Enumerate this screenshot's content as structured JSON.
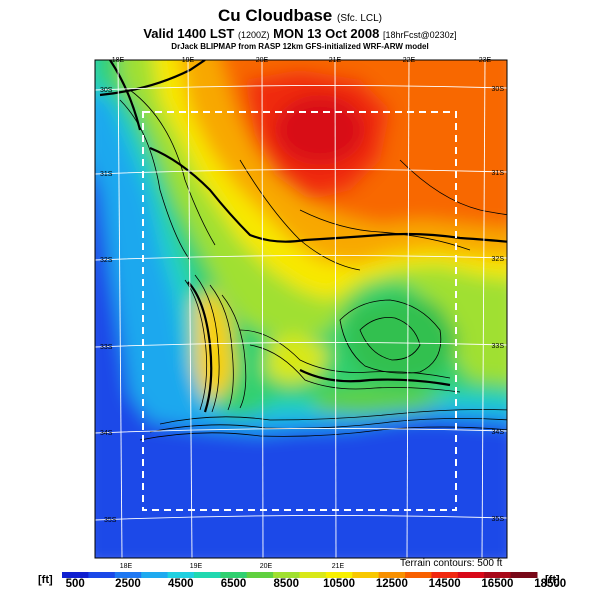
{
  "header": {
    "title": "Cu Cloudbase",
    "title_suffix": "(Sfc. LCL)",
    "valid_main": "Valid 1400 LST",
    "valid_code": "(1200Z)",
    "valid_date": "MON 13 Oct 2008",
    "valid_fcst": "[18hrFcst@0230z]",
    "subtitle": "DrJack BLIPMAP from RASP 12km GFS-initialized WRF-ARW model"
  },
  "map": {
    "lon_labels_top": [
      "18E",
      "19E",
      "20E",
      "21E",
      "22E",
      "23E"
    ],
    "lon_labels_bottom": [
      "18E",
      "19E",
      "20E",
      "21E"
    ],
    "lat_labels_left": [
      "30S",
      "31S",
      "32S",
      "33S",
      "34S",
      "35S"
    ],
    "lat_labels_right": [
      "30S",
      "31S",
      "32S",
      "33S",
      "34S",
      "35S"
    ],
    "terrain_note": "Terrain contours: 500 ft"
  },
  "colorbar": {
    "unit_left": "[ft]",
    "unit_right": "[ft]",
    "labels": [
      "500",
      "2500",
      "4500",
      "6500",
      "8500",
      "10500",
      "12500",
      "14500",
      "16500",
      "18500"
    ],
    "colors": [
      "#1020d0",
      "#1a48e8",
      "#1f78f2",
      "#1faaf0",
      "#20d0e0",
      "#20d8b0",
      "#30d070",
      "#60d040",
      "#a0e030",
      "#d8e818",
      "#f8f000",
      "#f8c800",
      "#f89000",
      "#f86000",
      "#f02810",
      "#d80818",
      "#a80818",
      "#780818"
    ]
  }
}
